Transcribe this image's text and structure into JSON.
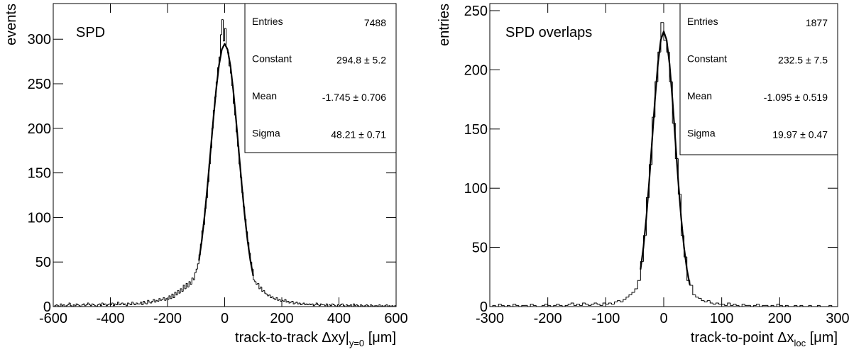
{
  "chart_data": [
    {
      "type": "histogram",
      "title": "SPD",
      "ylabel": "events",
      "xlabel": {
        "text": "track-to-track Δxy|",
        "sub": "y=0",
        "unit": " [μm]"
      },
      "xlim": [
        -600,
        600
      ],
      "xticks": [
        -600,
        -400,
        -200,
        0,
        200,
        400,
        600
      ],
      "ylim": [
        0,
        340
      ],
      "yticks": [
        0,
        50,
        100,
        150,
        200,
        250,
        300
      ],
      "color": "#000000",
      "bins": [
        -600,
        -595,
        -590,
        -585,
        -580,
        -575,
        -570,
        -565,
        -560,
        -555,
        -550,
        -545,
        -540,
        -535,
        -530,
        -525,
        -520,
        -515,
        -510,
        -505,
        -500,
        -495,
        -490,
        -485,
        -480,
        -475,
        -470,
        -465,
        -460,
        -455,
        -450,
        -445,
        -440,
        -435,
        -430,
        -425,
        -420,
        -415,
        -410,
        -405,
        -400,
        -395,
        -390,
        -385,
        -380,
        -375,
        -370,
        -365,
        -360,
        -355,
        -350,
        -345,
        -340,
        -335,
        -330,
        -325,
        -320,
        -315,
        -310,
        -305,
        -300,
        -295,
        -290,
        -285,
        -280,
        -275,
        -270,
        -265,
        -260,
        -255,
        -250,
        -245,
        -240,
        -235,
        -230,
        -225,
        -220,
        -215,
        -210,
        -205,
        -200,
        -195,
        -190,
        -185,
        -180,
        -175,
        -170,
        -165,
        -160,
        -155,
        -150,
        -145,
        -140,
        -135,
        -130,
        -125,
        -120,
        -115,
        -110,
        -105,
        -100,
        -95,
        -90,
        -85,
        -80,
        -75,
        -70,
        -65,
        -60,
        -55,
        -50,
        -45,
        -40,
        -35,
        -30,
        -25,
        -20,
        -15,
        -10,
        -5,
        0,
        5,
        10,
        15,
        20,
        25,
        30,
        35,
        40,
        45,
        50,
        55,
        60,
        65,
        70,
        75,
        80,
        85,
        90,
        95,
        100,
        105,
        110,
        115,
        120,
        125,
        130,
        135,
        140,
        145,
        150,
        155,
        160,
        165,
        170,
        175,
        180,
        185,
        190,
        195,
        200,
        205,
        210,
        215,
        220,
        225,
        230,
        235,
        240,
        245,
        250,
        255,
        260,
        265,
        270,
        275,
        280,
        285,
        290,
        295,
        300,
        305,
        310,
        315,
        320,
        325,
        330,
        335,
        340,
        345,
        350,
        355,
        360,
        365,
        370,
        375,
        380,
        385,
        390,
        395,
        400,
        405,
        410,
        415,
        420,
        425,
        430,
        435,
        440,
        445,
        450,
        455,
        460,
        465,
        470,
        475,
        480,
        485,
        490,
        495,
        500,
        505,
        510,
        515,
        520,
        525,
        530,
        535,
        540,
        545,
        550,
        555,
        560,
        565,
        570,
        575,
        580,
        585,
        590,
        595,
        600
      ],
      "counts": [
        0,
        1,
        2,
        1,
        0,
        3,
        1,
        2,
        0,
        1,
        2,
        4,
        1,
        0,
        2,
        1,
        3,
        2,
        1,
        0,
        2,
        3,
        1,
        2,
        4,
        2,
        1,
        3,
        2,
        1,
        0,
        2,
        3,
        1,
        4,
        2,
        3,
        1,
        2,
        3,
        2,
        4,
        1,
        3,
        2,
        5,
        2,
        3,
        4,
        2,
        3,
        1,
        4,
        3,
        2,
        5,
        3,
        2,
        4,
        3,
        3,
        5,
        2,
        6,
        4,
        3,
        7,
        5,
        4,
        6,
        8,
        5,
        7,
        6,
        9,
        7,
        8,
        10,
        7,
        9,
        8,
        12,
        9,
        14,
        10,
        16,
        13,
        18,
        15,
        20,
        17,
        24,
        20,
        26,
        22,
        28,
        25,
        32,
        30,
        38,
        42,
        48,
        58,
        70,
        85,
        92,
        110,
        122,
        140,
        160,
        178,
        200,
        220,
        235,
        252,
        268,
        280,
        305,
        322,
        298,
        312,
        290,
        285,
        270,
        262,
        248,
        228,
        215,
        196,
        180,
        160,
        145,
        128,
        112,
        98,
        84,
        72,
        60,
        50,
        42,
        30,
        28,
        25,
        26,
        20,
        22,
        17,
        18,
        15,
        14,
        12,
        13,
        10,
        11,
        9,
        8,
        10,
        7,
        8,
        6,
        7,
        6,
        8,
        5,
        6,
        4,
        5,
        6,
        3,
        4,
        5,
        3,
        4,
        2,
        3,
        4,
        2,
        3,
        2,
        3,
        2,
        3,
        1,
        2,
        4,
        2,
        1,
        3,
        2,
        2,
        1,
        3,
        0,
        2,
        1,
        3,
        2,
        1,
        0,
        2,
        1,
        2,
        3,
        1,
        0,
        2,
        1,
        1,
        2,
        0,
        3,
        1,
        2,
        1,
        0,
        2,
        1,
        0,
        1,
        2,
        1,
        0,
        2,
        1,
        0,
        1,
        1,
        0,
        2,
        0,
        1,
        0,
        1,
        2,
        0,
        1,
        0,
        1,
        0,
        1
      ],
      "fit": {
        "x": [
          -90,
          -80,
          -70,
          -60,
          -50,
          -40,
          -30,
          -20,
          -10,
          0,
          10,
          20,
          30,
          40,
          50,
          60,
          70,
          80,
          90,
          100
        ],
        "values": [
          51.6,
          74.4,
          102.7,
          135.9,
          172.2,
          209.0,
          242.9,
          270.5,
          288.5,
          294.8,
          288.5,
          270.5,
          242.9,
          209.0,
          172.2,
          135.9,
          102.7,
          74.4,
          51.6,
          34.3
        ]
      },
      "stats": [
        {
          "label": "Entries",
          "value": "7488"
        },
        {
          "label": "Constant",
          "value": "294.8 ± 5.2"
        },
        {
          "label": "Mean",
          "value": "-1.745 ± 0.706"
        },
        {
          "label": "Sigma",
          "value": "48.21 ± 0.71"
        }
      ]
    },
    {
      "type": "histogram",
      "title": "SPD overlaps",
      "ylabel": "entries",
      "xlabel": {
        "text": "track-to-point Δx",
        "sub": "loc",
        "unit": " [μm]"
      },
      "xlim": [
        -300,
        300
      ],
      "xticks": [
        -300,
        -200,
        -100,
        0,
        100,
        200,
        300
      ],
      "ylim": [
        0,
        256
      ],
      "yticks": [
        0,
        50,
        100,
        150,
        200,
        250
      ],
      "color": "#000000",
      "bins": [
        -300,
        -295,
        -290,
        -285,
        -280,
        -275,
        -270,
        -265,
        -260,
        -255,
        -250,
        -245,
        -240,
        -235,
        -230,
        -225,
        -220,
        -215,
        -210,
        -205,
        -200,
        -195,
        -190,
        -185,
        -180,
        -175,
        -170,
        -165,
        -160,
        -155,
        -150,
        -145,
        -140,
        -135,
        -130,
        -125,
        -120,
        -115,
        -110,
        -105,
        -100,
        -95,
        -90,
        -85,
        -80,
        -75,
        -70,
        -65,
        -60,
        -55,
        -50,
        -45,
        -40,
        -35,
        -30,
        -25,
        -20,
        -15,
        -10,
        -5,
        0,
        5,
        10,
        15,
        20,
        25,
        30,
        35,
        40,
        45,
        50,
        55,
        60,
        65,
        70,
        75,
        80,
        85,
        90,
        95,
        100,
        105,
        110,
        115,
        120,
        125,
        130,
        135,
        140,
        145,
        150,
        155,
        160,
        165,
        170,
        175,
        180,
        185,
        190,
        195,
        200,
        205,
        210,
        215,
        220,
        225,
        230,
        235,
        240,
        245,
        250,
        255,
        260,
        265,
        270,
        275,
        280,
        285,
        290,
        295,
        300
      ],
      "counts": [
        0,
        1,
        0,
        2,
        1,
        0,
        1,
        0,
        2,
        1,
        0,
        1,
        1,
        0,
        2,
        1,
        0,
        0,
        1,
        2,
        1,
        0,
        1,
        2,
        1,
        0,
        1,
        2,
        3,
        1,
        2,
        1,
        3,
        2,
        1,
        2,
        3,
        2,
        1,
        3,
        2,
        3,
        2,
        4,
        5,
        4,
        6,
        8,
        10,
        12,
        15,
        22,
        38,
        60,
        92,
        120,
        160,
        190,
        215,
        240,
        225,
        215,
        190,
        155,
        125,
        95,
        60,
        42,
        22,
        18,
        10,
        8,
        7,
        5,
        4,
        5,
        3,
        2,
        3,
        2,
        2,
        1,
        3,
        1,
        2,
        1,
        0,
        2,
        1,
        1,
        0,
        1,
        2,
        0,
        1,
        1,
        0,
        1,
        0,
        2,
        1,
        0,
        1,
        0,
        0,
        1,
        0,
        1,
        0,
        0,
        1,
        0,
        0,
        1,
        0,
        0,
        0,
        1,
        0,
        0
      ],
      "fit": {
        "x": [
          -40,
          -35,
          -30,
          -25,
          -20,
          -15,
          -10,
          -5,
          0,
          5,
          10,
          15,
          20,
          25,
          30,
          35,
          40,
          45
        ],
        "values": [
          31.3,
          50.1,
          75.2,
          106.2,
          140.8,
          175.4,
          205.1,
          225.3,
          232.5,
          225.3,
          205.1,
          175.4,
          140.8,
          106.2,
          75.2,
          50.1,
          31.3,
          18.4
        ]
      },
      "stats": [
        {
          "label": "Entries",
          "value": "1877"
        },
        {
          "label": "Constant",
          "value": "232.5 ± 7.5"
        },
        {
          "label": "Mean",
          "value": "-1.095 ± 0.519"
        },
        {
          "label": "Sigma",
          "value": "19.97 ± 0.47"
        }
      ]
    }
  ]
}
